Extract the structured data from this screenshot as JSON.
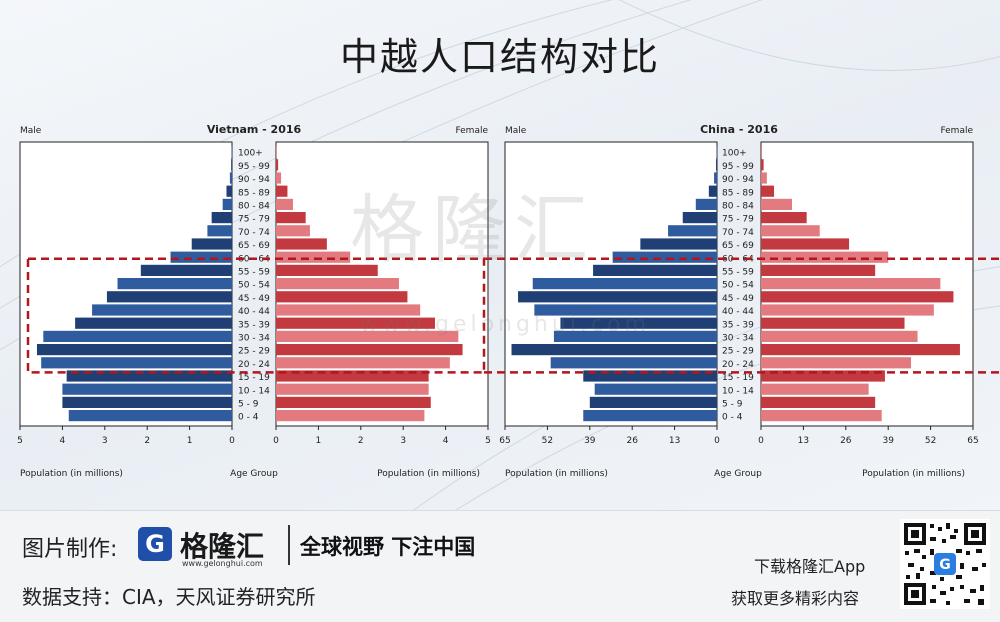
{
  "title": "中越人口结构对比",
  "watermark": "格隆汇",
  "watermark_url": "www.gelonghui.com",
  "colors": {
    "male": "#1f3f75",
    "male_light": "#2e5c9e",
    "female": "#c2393f",
    "female_light": "#e27a80",
    "highlight": "#b3161c"
  },
  "charts": [
    {
      "title": "Vietnam - 2016",
      "male_label": "Male",
      "female_label": "Female",
      "xlabel_left": "Population (in millions)",
      "xlabel_center": "Age Group",
      "xlabel_right": "Population (in millions)",
      "male_ticks": [
        "5",
        "4",
        "3",
        "2",
        "1",
        "0"
      ],
      "female_ticks": [
        "0",
        "1",
        "2",
        "3",
        "4",
        "5"
      ]
    },
    {
      "title": "China - 2016",
      "male_label": "Male",
      "female_label": "Female",
      "xlabel_left": "Population (in millions)",
      "xlabel_center": "Age Group",
      "xlabel_right": "Population (in millions)",
      "male_ticks": [
        "65",
        "52",
        "39",
        "26",
        "13",
        "0"
      ],
      "female_ticks": [
        "0",
        "13",
        "26",
        "39",
        "52",
        "65"
      ]
    }
  ],
  "chart_data": [
    {
      "type": "bar",
      "title": "Vietnam - 2016",
      "orientation": "horizontal-pyramid",
      "categories": [
        "100+",
        "95 - 99",
        "90 - 94",
        "85 - 89",
        "80 - 84",
        "75 - 79",
        "70 - 74",
        "65 - 69",
        "60 - 64",
        "55 - 59",
        "50 - 54",
        "45 - 49",
        "40 - 44",
        "35 - 39",
        "30 - 34",
        "25 - 29",
        "20 - 24",
        "15 - 19",
        "10 - 14",
        "5 - 9",
        "0 - 4"
      ],
      "series": [
        {
          "name": "Male",
          "values": [
            0.01,
            0.02,
            0.05,
            0.13,
            0.22,
            0.48,
            0.58,
            0.95,
            1.45,
            2.15,
            2.7,
            2.95,
            3.3,
            3.7,
            4.45,
            4.6,
            4.5,
            3.9,
            4.0,
            4.0,
            3.85
          ]
        },
        {
          "name": "Female",
          "values": [
            0.02,
            0.05,
            0.12,
            0.27,
            0.4,
            0.7,
            0.8,
            1.2,
            1.75,
            2.4,
            2.9,
            3.1,
            3.4,
            3.75,
            4.3,
            4.4,
            4.1,
            3.6,
            3.6,
            3.65,
            3.5
          ]
        }
      ],
      "xlim": [
        0,
        5
      ],
      "xlabel": "Population (in millions)",
      "ylabel": "Age Group"
    },
    {
      "type": "bar",
      "title": "China - 2016",
      "orientation": "horizontal-pyramid",
      "categories": [
        "100+",
        "95 - 99",
        "90 - 94",
        "85 - 89",
        "80 - 84",
        "75 - 79",
        "70 - 74",
        "65 - 69",
        "60 - 64",
        "55 - 59",
        "50 - 54",
        "45 - 49",
        "40 - 44",
        "35 - 39",
        "30 - 34",
        "25 - 29",
        "20 - 24",
        "15 - 19",
        "10 - 14",
        "5 - 9",
        "0 - 4"
      ],
      "series": [
        {
          "name": "Male",
          "values": [
            0.1,
            0.3,
            0.9,
            2.5,
            6.5,
            10.5,
            15.0,
            23.5,
            32.0,
            38.0,
            56.5,
            61.0,
            56.0,
            48.0,
            50.0,
            63.0,
            51.0,
            41.0,
            37.5,
            39.0,
            41.0
          ]
        },
        {
          "name": "Female",
          "values": [
            0.3,
            0.8,
            1.8,
            4.0,
            9.5,
            14.0,
            18.0,
            27.0,
            39.0,
            35.0,
            55.0,
            59.0,
            53.0,
            44.0,
            48.0,
            61.0,
            46.0,
            38.0,
            33.0,
            35.0,
            37.0
          ]
        }
      ],
      "xlim": [
        0,
        65
      ],
      "xlabel": "Population (in millions)",
      "ylabel": "Age Group"
    }
  ],
  "footer": {
    "made_by_label": "图片制作:",
    "logo_mark": "G",
    "logo_text": "格隆汇",
    "logo_url": "www.gelonghui.com",
    "slogan": "全球视野 下注中国",
    "source": "数据支持：CIA，天风证券研究所",
    "download_line1": "下载格隆汇App",
    "download_line2": "获取更多精彩内容"
  }
}
